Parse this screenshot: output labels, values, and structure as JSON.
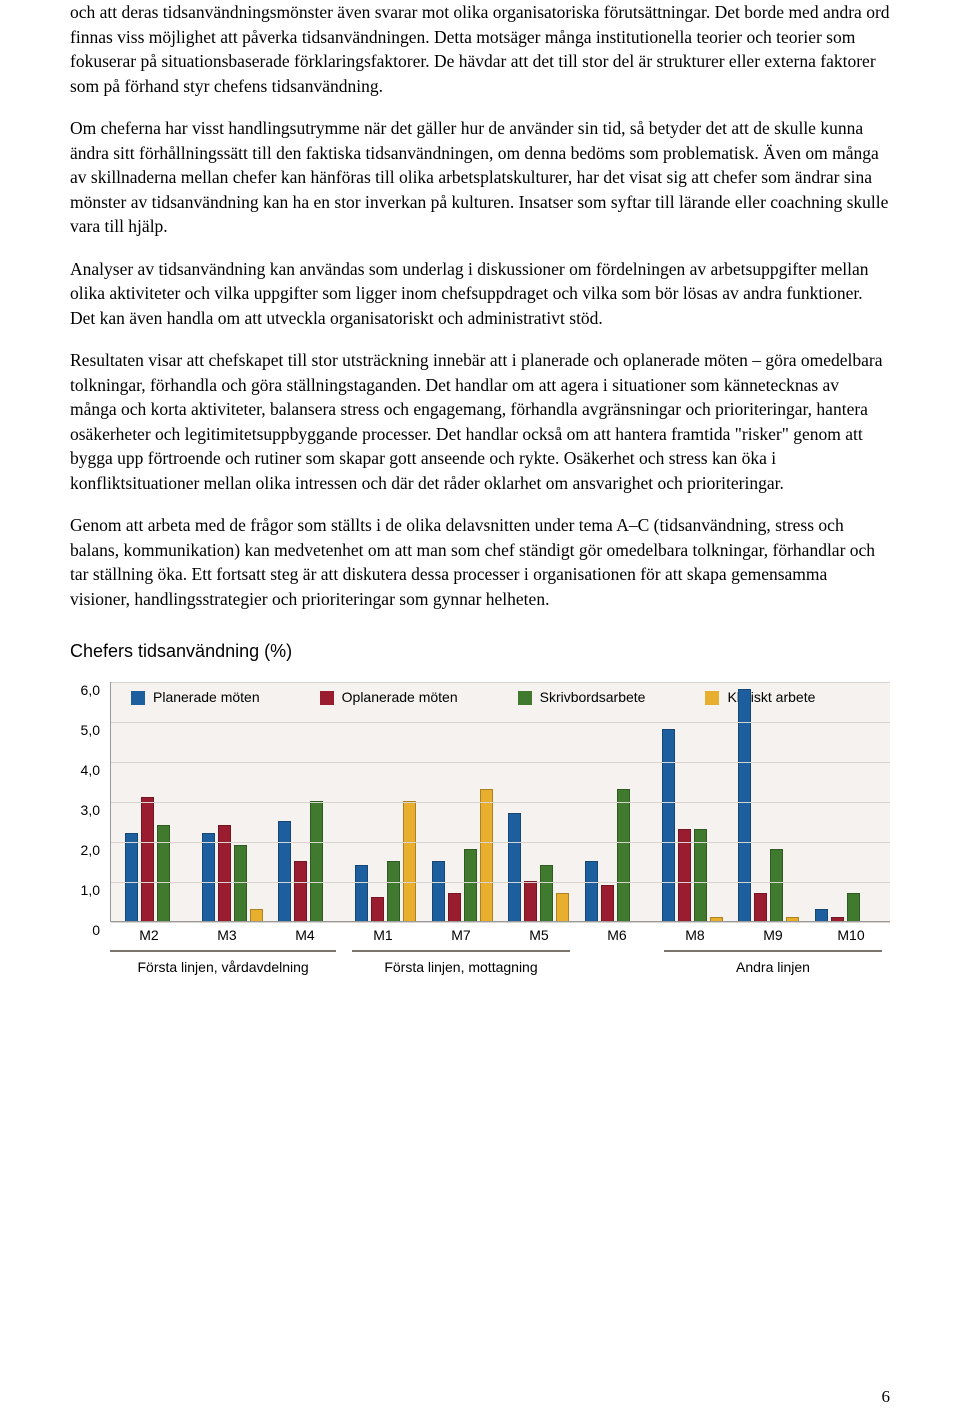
{
  "paragraphs": {
    "p1": "och att deras tidsanvändningsmönster även svarar mot olika organisatoriska förutsättningar. Det borde med andra ord finnas viss möjlighet att påverka tidsanvändningen. Detta motsäger många institutionella teorier och teorier som fokuserar på situationsbaserade förklaringsfaktorer. De hävdar att det till stor del är strukturer eller externa faktorer som på förhand styr chefens tidsanvändning.",
    "p2": "Om cheferna har visst handlingsutrymme när det gäller hur de använder sin tid, så betyder det att de skulle kunna ändra sitt förhållningssätt till den faktiska tidsanvändningen, om denna bedöms som problematisk. Även om många av skillnaderna mellan chefer kan hänföras till olika arbetsplatskulturer, har det visat sig att chefer som ändrar sina mönster av tidsanvändning kan ha en stor inverkan på kulturen. Insatser som syftar till lärande eller coachning skulle vara till hjälp.",
    "p3": "Analyser av tidsanvändning kan användas som underlag i diskussioner om fördelningen av arbetsuppgifter mellan olika aktiviteter och vilka uppgifter som ligger inom chefsuppdraget och vilka som bör lösas av andra funktioner. Det kan även handla om att utveckla organisatoriskt och administrativt stöd.",
    "p4": "Resultaten visar att chefskapet till stor utsträckning innebär att i planerade och oplanerade möten – göra omedelbara tolkningar, förhandla och göra ställningstaganden. Det handlar om att agera i situationer som kännetecknas av många och korta aktiviteter, balansera stress och engagemang, förhandla avgränsningar och prioriteringar, hantera osäkerheter och legitimitetsuppbyggande processer. Det handlar också om att hantera framtida \"risker\" genom att bygga upp förtroende och rutiner som skapar gott anseende och rykte. Osäkerhet och stress kan öka i konfliktsituationer mellan olika intressen och där det råder oklarhet om ansvarighet och prioriteringar.",
    "p5": "Genom att arbeta med de frågor som ställts i de olika delavsnitten under tema A–C (tidsanvändning, stress och balans, kommunikation) kan medvetenhet om att man som chef ständigt gör omedelbara tolkningar, förhandlar och tar ställning öka. Ett fortsatt steg är att diskutera dessa processer i organisationen för att skapa gemensamma visioner, handlingsstrategier och prioriteringar som gynnar helheten."
  },
  "chart": {
    "title": "Chefers tidsanvändning (%)",
    "type": "bar",
    "ylim": [
      0,
      6
    ],
    "ytick_step": 1.0,
    "yticks": [
      "0",
      "1,0",
      "2,0",
      "3,0",
      "4,0",
      "5,0",
      "6,0"
    ],
    "background_color": "#f5f2ef",
    "grid_color": "#d8d4cf",
    "series": [
      {
        "name": "Planerade möten",
        "color": "#1d5e9e"
      },
      {
        "name": "Oplanerade möten",
        "color": "#9a1d2f"
      },
      {
        "name": "Skrivbordsarbete",
        "color": "#3f7a2e"
      },
      {
        "name": "Kliniskt arbete",
        "color": "#e8ae2d"
      }
    ],
    "categories": [
      "M2",
      "M3",
      "M4",
      "M1",
      "M7",
      "M5",
      "M6",
      "M8",
      "M9",
      "M10"
    ],
    "values": [
      [
        2.2,
        3.1,
        2.4,
        0.0
      ],
      [
        2.2,
        2.4,
        1.9,
        0.3
      ],
      [
        2.5,
        1.5,
        3.0,
        0.0
      ],
      [
        1.4,
        0.6,
        1.5,
        3.0
      ],
      [
        1.5,
        0.7,
        1.8,
        3.3
      ],
      [
        2.7,
        1.0,
        1.4,
        0.7
      ],
      [
        1.5,
        0.9,
        3.3,
        0.0
      ],
      [
        4.8,
        2.3,
        2.3,
        0.1
      ],
      [
        5.8,
        0.7,
        1.8,
        0.1
      ],
      [
        0.3,
        0.1,
        0.7,
        0.0
      ]
    ],
    "sections": [
      {
        "label": "Första linjen, vårdavdelning",
        "left_pct": 0,
        "width_pct": 29
      },
      {
        "label": "Första linjen, mottagning",
        "left_pct": 31,
        "width_pct": 28
      },
      {
        "label": "Andra linjen",
        "left_pct": 71,
        "width_pct": 28
      }
    ]
  },
  "page_number": "6"
}
